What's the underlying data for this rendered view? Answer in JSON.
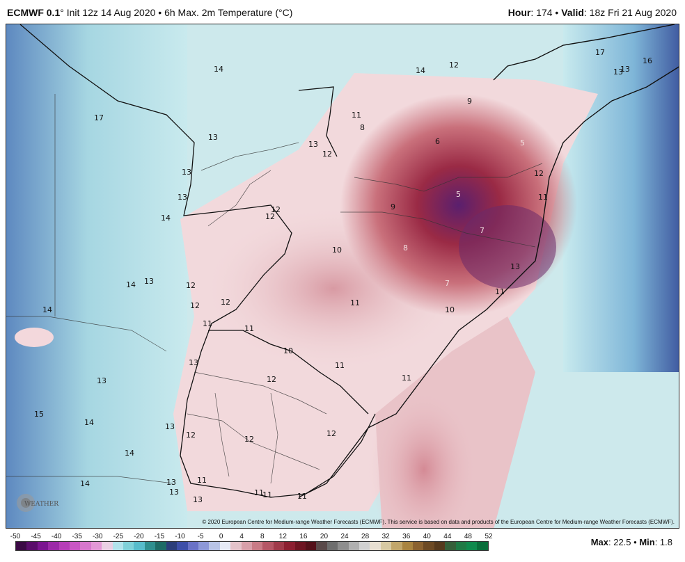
{
  "header": {
    "model": "ECMWF 0.1",
    "init_text": "° Init 12z 14 Aug 2020 • 6h Max. 2m Temperature (°C)",
    "hour_label": "Hour",
    "hour_value": ": 174 • ",
    "valid_label": "Valid",
    "valid_value": ": 18z Fri 21 Aug 2020"
  },
  "map": {
    "copyright": "© 2020 European Centre for Medium-range Weather Forecasts (ECMWF). This service is based on data and products of the European Centre for Medium-range Weather Forecasts (ECMWF).",
    "logo_text": "WEATHERBELL",
    "values": [
      "14",
      "14",
      "12",
      "17",
      "9",
      "11",
      "8",
      "13",
      "13",
      "6",
      "5",
      "12",
      "13",
      "12",
      "5",
      "11",
      "13",
      "9",
      "14",
      "12",
      "12",
      "7",
      "10",
      "8",
      "13",
      "14",
      "13",
      "12",
      "11",
      "12",
      "12",
      "11",
      "10",
      "14",
      "11",
      "11",
      "10",
      "13",
      "13",
      "11",
      "12",
      "11",
      "15",
      "14",
      "13",
      "12",
      "12",
      "12",
      "14",
      "14",
      "13",
      "11",
      "11",
      "13",
      "11",
      "11",
      "17",
      "13",
      "16",
      "13",
      "13",
      "7"
    ]
  },
  "colorbar": {
    "ticks": [
      "-50",
      "-45",
      "-40",
      "-35",
      "-30",
      "-25",
      "-20",
      "-15",
      "-10",
      "-5",
      "0",
      "4",
      "8",
      "12",
      "16",
      "20",
      "24",
      "28",
      "32",
      "36",
      "40",
      "44",
      "48",
      "52"
    ],
    "colors": [
      "#3b0a45",
      "#5a0d6b",
      "#7b1590",
      "#9c2aa8",
      "#b63eb8",
      "#c957c4",
      "#d777cc",
      "#e398d6",
      "#ead0e4",
      "#b2e3ec",
      "#7fd1d9",
      "#57bccb",
      "#2f8f8f",
      "#1e6b66",
      "#2c3e7a",
      "#3e4fa8",
      "#6a72c6",
      "#8d98d8",
      "#b8c3e6",
      "#e6eaf5",
      "#e4c2c9",
      "#d89fa9",
      "#c97b86",
      "#b55766",
      "#a03a4a",
      "#8c1f31",
      "#6e1522",
      "#54111a",
      "#5a4a4a",
      "#6e6e6e",
      "#8e8e8e",
      "#b0b0b0",
      "#d1d1d1",
      "#e9e0d2",
      "#d7c9a2",
      "#c1a66b",
      "#a98440",
      "#8b6230",
      "#6d4a24",
      "#563a1d",
      "#36603a",
      "#1f7a45",
      "#0f8a4d",
      "#0a6e3b"
    ]
  },
  "stats": {
    "max_label": "Max",
    "max_value": ": 22.5 • ",
    "min_label": "Min",
    "min_value": ": 1.8"
  }
}
